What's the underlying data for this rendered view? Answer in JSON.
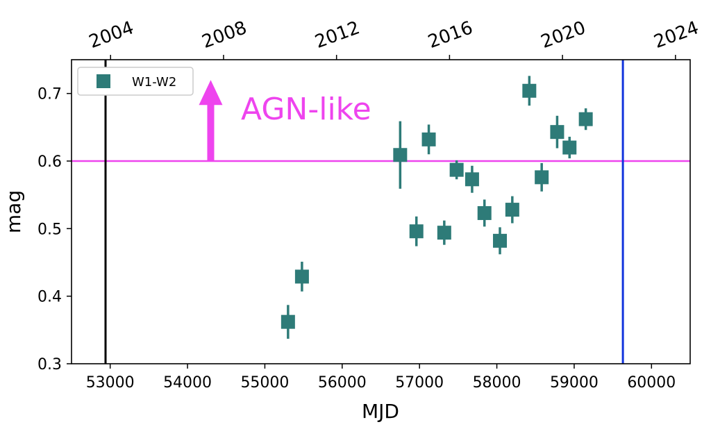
{
  "chart_data": {
    "type": "scatter",
    "xlabel": "MJD",
    "ylabel": "mag",
    "xlim": [
      52500,
      60500
    ],
    "ylim": [
      0.3,
      0.75
    ],
    "x_ticks": [
      53000,
      54000,
      55000,
      56000,
      57000,
      58000,
      59000,
      60000
    ],
    "y_ticks": [
      0.3,
      0.4,
      0.5,
      0.6,
      0.7
    ],
    "top_axis": {
      "ticks": [
        {
          "label": "2004",
          "mjd": 53005
        },
        {
          "label": "2008",
          "mjd": 54466
        },
        {
          "label": "2012",
          "mjd": 55927
        },
        {
          "label": "2016",
          "mjd": 57388
        },
        {
          "label": "2020",
          "mjd": 58849
        },
        {
          "label": "2024",
          "mjd": 60310
        }
      ]
    },
    "legend": {
      "position": "top-left",
      "entries": [
        "W1-W2"
      ]
    },
    "series": [
      {
        "name": "W1-W2",
        "color": "#2e7b78",
        "marker": "square",
        "points": [
          {
            "x": 55300,
            "y": 0.362,
            "err": 0.025
          },
          {
            "x": 55480,
            "y": 0.429,
            "err": 0.022
          },
          {
            "x": 56750,
            "y": 0.609,
            "err": 0.05
          },
          {
            "x": 56960,
            "y": 0.496,
            "err": 0.022
          },
          {
            "x": 57120,
            "y": 0.632,
            "err": 0.022
          },
          {
            "x": 57320,
            "y": 0.494,
            "err": 0.018
          },
          {
            "x": 57480,
            "y": 0.587,
            "err": 0.014
          },
          {
            "x": 57680,
            "y": 0.573,
            "err": 0.02
          },
          {
            "x": 57840,
            "y": 0.523,
            "err": 0.02
          },
          {
            "x": 58040,
            "y": 0.482,
            "err": 0.02
          },
          {
            "x": 58200,
            "y": 0.528,
            "err": 0.02
          },
          {
            "x": 58420,
            "y": 0.704,
            "err": 0.022
          },
          {
            "x": 58580,
            "y": 0.576,
            "err": 0.021
          },
          {
            "x": 58780,
            "y": 0.643,
            "err": 0.024
          },
          {
            "x": 58940,
            "y": 0.62,
            "err": 0.016
          },
          {
            "x": 59150,
            "y": 0.662,
            "err": 0.016
          }
        ]
      }
    ],
    "reference_lines": [
      {
        "orientation": "horizontal",
        "value": 0.6,
        "color": "#ee44ee"
      },
      {
        "orientation": "vertical",
        "value": 52940,
        "color": "#000000"
      },
      {
        "orientation": "vertical",
        "value": 59630,
        "color": "#1133dd"
      }
    ],
    "annotation": {
      "text": "AGN-like",
      "color": "#ee44ee",
      "arrow": {
        "x": 54300,
        "y_from": 0.6,
        "y_to": 0.72
      }
    }
  }
}
